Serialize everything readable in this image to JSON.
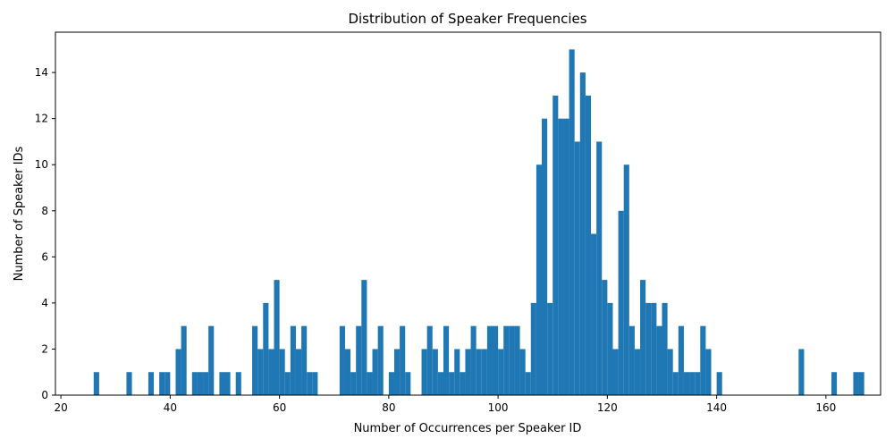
{
  "chart_data": {
    "type": "bar",
    "title": "Distribution of Speaker Frequencies",
    "xlabel": "Number of Occurrences per Speaker ID",
    "ylabel": "Number of Speaker IDs",
    "xlim": [
      19,
      170
    ],
    "ylim": [
      0,
      15.75
    ],
    "xticks": [
      20,
      40,
      60,
      80,
      100,
      120,
      140,
      160
    ],
    "yticks": [
      0,
      2,
      4,
      6,
      8,
      10,
      12,
      14
    ],
    "bar_color": "#1f77b4",
    "bin_width": 1,
    "x": [
      26,
      32,
      36,
      38,
      39,
      41,
      42,
      44,
      45,
      46,
      47,
      49,
      50,
      52,
      55,
      56,
      57,
      58,
      59,
      60,
      61,
      62,
      63,
      64,
      65,
      66,
      71,
      72,
      73,
      74,
      75,
      76,
      77,
      78,
      80,
      81,
      82,
      83,
      86,
      87,
      88,
      89,
      90,
      91,
      92,
      93,
      94,
      95,
      96,
      97,
      98,
      99,
      100,
      101,
      102,
      103,
      104,
      105,
      106,
      107,
      108,
      109,
      110,
      111,
      112,
      113,
      114,
      115,
      116,
      117,
      118,
      119,
      120,
      121,
      122,
      123,
      124,
      125,
      126,
      127,
      128,
      129,
      130,
      131,
      132,
      133,
      134,
      135,
      136,
      137,
      138,
      140,
      155,
      161,
      165,
      166
    ],
    "values": [
      1,
      1,
      1,
      1,
      1,
      2,
      3,
      1,
      1,
      1,
      3,
      1,
      1,
      1,
      3,
      2,
      4,
      2,
      5,
      2,
      1,
      3,
      2,
      3,
      1,
      1,
      3,
      2,
      1,
      3,
      5,
      1,
      2,
      3,
      1,
      2,
      3,
      1,
      2,
      3,
      2,
      1,
      3,
      1,
      2,
      1,
      2,
      3,
      2,
      2,
      3,
      3,
      2,
      3,
      3,
      3,
      2,
      1,
      4,
      10,
      12,
      4,
      13,
      12,
      12,
      15,
      11,
      14,
      13,
      7,
      11,
      5,
      4,
      2,
      8,
      10,
      3,
      2,
      5,
      4,
      4,
      3,
      4,
      2,
      1,
      3,
      1,
      1,
      1,
      3,
      2,
      1,
      2,
      1,
      1,
      1
    ]
  }
}
